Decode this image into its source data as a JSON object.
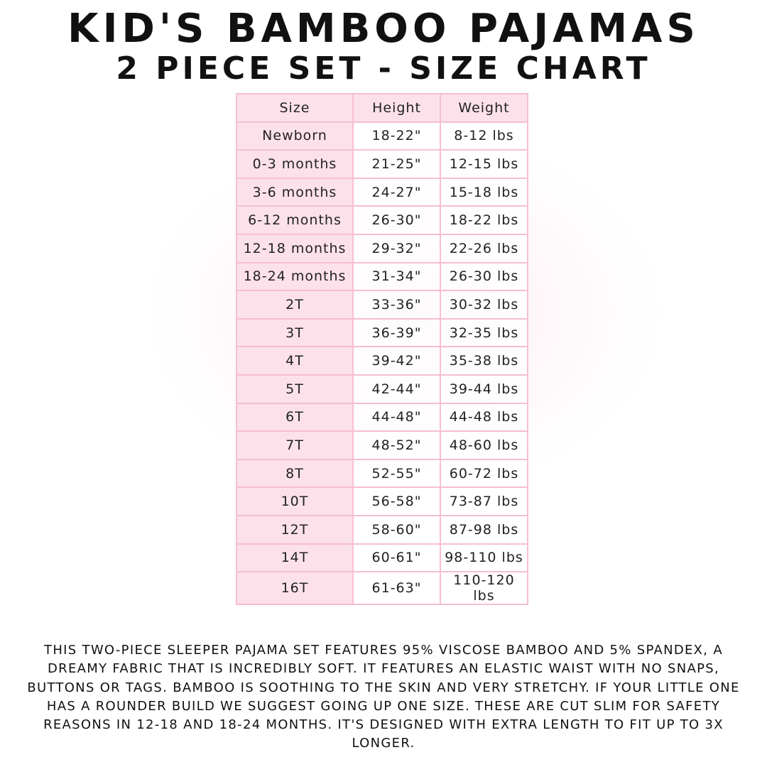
{
  "title_line1": "Kid's Bamboo Pajamas",
  "title_line2": "2 Piece Set - Size Chart",
  "table": {
    "headers": [
      "Size",
      "Height",
      "Weight"
    ],
    "rows": [
      [
        "Newborn",
        "18-22\"",
        "8-12 lbs"
      ],
      [
        "0-3 months",
        "21-25\"",
        "12-15 lbs"
      ],
      [
        "3-6 months",
        "24-27\"",
        "15-18 lbs"
      ],
      [
        "6-12 months",
        "26-30\"",
        "18-22 lbs"
      ],
      [
        "12-18 months",
        "29-32\"",
        "22-26 lbs"
      ],
      [
        "18-24 months",
        "31-34\"",
        "26-30 lbs"
      ],
      [
        "2T",
        "33-36\"",
        "30-32 lbs"
      ],
      [
        "3T",
        "36-39\"",
        "32-35 lbs"
      ],
      [
        "4T",
        "39-42\"",
        "35-38 lbs"
      ],
      [
        "5T",
        "42-44\"",
        "39-44 lbs"
      ],
      [
        "6T",
        "44-48\"",
        "44-48 lbs"
      ],
      [
        "7T",
        "48-52\"",
        "48-60 lbs"
      ],
      [
        "8T",
        "52-55\"",
        "60-72 lbs"
      ],
      [
        "10T",
        "56-58\"",
        "73-87 lbs"
      ],
      [
        "12T",
        "58-60\"",
        "87-98 lbs"
      ],
      [
        "14T",
        "60-61\"",
        "98-110 lbs"
      ],
      [
        "16T",
        "61-63\"",
        "110-120 lbs"
      ]
    ]
  },
  "description": "This two-piece sleeper pajama set features 95% viscose bamboo and 5% spandex, a dreamy fabric that is incredibly soft. It features an elastic waist with no snaps, buttons or tags. Bamboo is soothing to the skin and very stretchy. If your little one has a rounder build we suggest going up one size. These are cut slim for safety reasons in 12-18 and 18-24 months. It's designed with extra length to fit up to 3x longer.",
  "colors": {
    "accent_pink": "#fce1ea",
    "border_pink": "#f6bfd0"
  }
}
